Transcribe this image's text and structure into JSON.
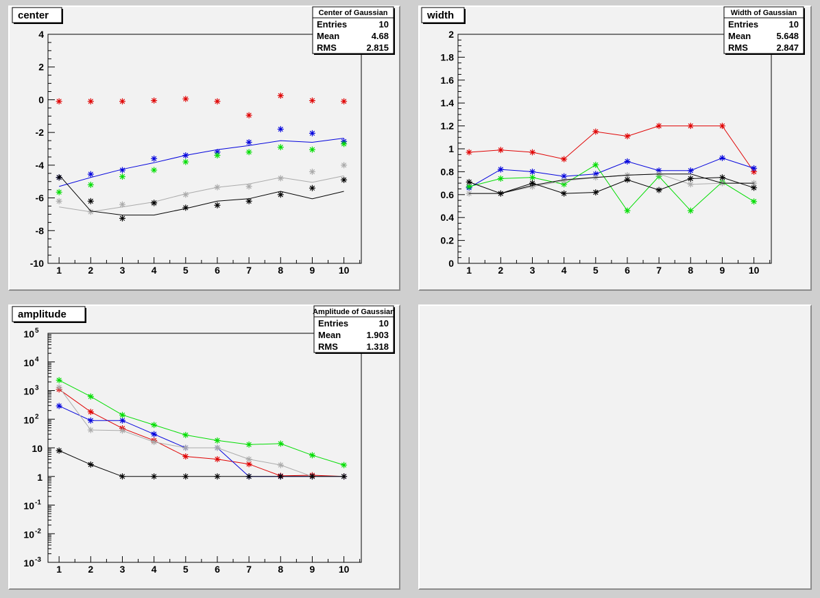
{
  "chart_data": [
    {
      "id": "center",
      "type": "scatter",
      "title": "center",
      "ylim": [
        -10,
        4
      ],
      "xlim": [
        0.65,
        10.55
      ],
      "x_ticks": [
        "1",
        "2",
        "3",
        "4",
        "5",
        "6",
        "7",
        "8",
        "9",
        "10"
      ],
      "y_ticks": [
        "-10",
        "-8",
        "-6",
        "-4",
        "-2",
        "0",
        "2",
        "4"
      ],
      "stats": {
        "title": "Center of Gaussian",
        "rows": [
          [
            "Entries",
            "10"
          ],
          [
            "Mean",
            "4.68"
          ],
          [
            "RMS",
            "2.815"
          ]
        ]
      },
      "series": [
        {
          "color": "#e00000",
          "marker": true,
          "values": [
            -0.1,
            -0.1,
            -0.1,
            -0.05,
            0.05,
            -0.1,
            -0.95,
            0.25,
            -0.05,
            -0.1
          ]
        },
        {
          "color": "#0000dd",
          "marker": true,
          "values": [
            -4.75,
            -4.55,
            -4.3,
            -3.6,
            -3.4,
            -3.2,
            -2.6,
            -1.8,
            -2.05,
            -2.55
          ]
        },
        {
          "color": "#0000dd",
          "line": true,
          "values": [
            -5.3,
            -4.75,
            -4.25,
            -3.85,
            -3.4,
            -3.05,
            -2.8,
            -2.5,
            -2.6,
            -2.35
          ]
        },
        {
          "color": "#00dd00",
          "marker": true,
          "values": [
            -5.65,
            -5.2,
            -4.7,
            -4.3,
            -3.8,
            -3.4,
            -3.2,
            -2.9,
            -3.05,
            -2.7
          ]
        },
        {
          "color": "#aaaaaa",
          "marker": true,
          "values": [
            -6.2,
            -6.85,
            -6.4,
            -6.35,
            -5.8,
            -5.35,
            -5.3,
            -4.8,
            -4.4,
            -4.0
          ]
        },
        {
          "color": "#aaaaaa",
          "line": true,
          "values": [
            -6.55,
            -6.85,
            -6.55,
            -6.25,
            -5.75,
            -5.35,
            -5.15,
            -4.75,
            -5.05,
            -4.65
          ]
        },
        {
          "color": "#000000",
          "marker": true,
          "values": [
            -4.75,
            -6.2,
            -7.25,
            -6.3,
            -6.6,
            -6.45,
            -6.2,
            -5.8,
            -5.4,
            -4.9
          ]
        },
        {
          "color": "#000000",
          "line": true,
          "values": [
            -4.6,
            -6.8,
            -7.05,
            -7.05,
            -6.65,
            -6.2,
            -6.05,
            -5.6,
            -6.05,
            -5.6
          ]
        }
      ]
    },
    {
      "id": "width",
      "type": "scatter",
      "title": "width",
      "ylim": [
        0,
        2
      ],
      "xlim": [
        0.65,
        10.55
      ],
      "x_ticks": [
        "1",
        "2",
        "3",
        "4",
        "5",
        "6",
        "7",
        "8",
        "9",
        "10"
      ],
      "y_ticks": [
        "0",
        "0.2",
        "0.4",
        "0.6",
        "0.8",
        "1",
        "1.2",
        "1.4",
        "1.6",
        "1.8",
        "2"
      ],
      "stats": {
        "title": "Width of Gaussian",
        "rows": [
          [
            "Entries",
            "10"
          ],
          [
            "Mean",
            "5.648"
          ],
          [
            "RMS",
            "2.847"
          ]
        ]
      },
      "series": [
        {
          "color": "#e00000",
          "marker": true,
          "line": true,
          "values": [
            0.97,
            0.99,
            0.97,
            0.91,
            1.15,
            1.11,
            1.2,
            1.2,
            1.2,
            0.8
          ]
        },
        {
          "color": "#0000dd",
          "marker": true,
          "line": true,
          "values": [
            0.66,
            0.82,
            0.8,
            0.76,
            0.78,
            0.89,
            0.81,
            0.81,
            0.92,
            0.83
          ]
        },
        {
          "color": "#00dd00",
          "marker": true,
          "line": true,
          "values": [
            0.67,
            0.74,
            0.75,
            0.69,
            0.86,
            0.46,
            0.76,
            0.46,
            0.71,
            0.54
          ]
        },
        {
          "color": "#aaaaaa",
          "marker": true,
          "line": true,
          "values": [
            0.61,
            0.61,
            0.67,
            0.72,
            0.75,
            0.77,
            0.78,
            0.69,
            0.7,
            0.7
          ]
        },
        {
          "color": "#000000",
          "marker": true,
          "line": true,
          "values": [
            0.71,
            0.61,
            0.7,
            0.61,
            0.62,
            0.73,
            0.64,
            0.74,
            0.75,
            0.66
          ]
        },
        {
          "color": "#000000",
          "line": true,
          "values": [
            0.61,
            0.61,
            0.68,
            0.73,
            0.75,
            0.77,
            0.78,
            0.78,
            0.7,
            0.7
          ]
        }
      ]
    },
    {
      "id": "amplitude",
      "type": "scatter",
      "title": "amplitude",
      "log_y": true,
      "ylim": [
        0.001,
        100000
      ],
      "xlim": [
        0.65,
        10.55
      ],
      "x_ticks": [
        "1",
        "2",
        "3",
        "4",
        "5",
        "6",
        "7",
        "8",
        "9",
        "10"
      ],
      "y_ticks": [
        [
          "10",
          "-3"
        ],
        [
          "10",
          "-2"
        ],
        [
          "10",
          "-1"
        ],
        [
          "1",
          ""
        ],
        [
          "10",
          ""
        ],
        [
          "10",
          "2"
        ],
        [
          "10",
          "3"
        ],
        [
          "10",
          "4"
        ],
        [
          "10",
          "5"
        ]
      ],
      "stats": {
        "title": "Amplitude of Gaussian",
        "rows": [
          [
            "Entries",
            "10"
          ],
          [
            "Mean",
            "1.903"
          ],
          [
            "RMS",
            "1.318"
          ]
        ]
      },
      "series": [
        {
          "color": "#e00000",
          "marker": true,
          "line": true,
          "values": [
            1100,
            180,
            48,
            18,
            5,
            4,
            2.7,
            1.05,
            1.1,
            1
          ]
        },
        {
          "color": "#0000dd",
          "marker": true,
          "line": true,
          "values": [
            290,
            90,
            90,
            30,
            10,
            10,
            1,
            1,
            1,
            1
          ]
        },
        {
          "color": "#00dd00",
          "marker": true,
          "line": true,
          "values": [
            2300,
            620,
            140,
            63,
            28,
            18,
            13,
            14,
            5.5,
            2.5
          ]
        },
        {
          "color": "#aaaaaa",
          "marker": true,
          "line": true,
          "values": [
            1300,
            42,
            40,
            16,
            10,
            10,
            4,
            2.5,
            1,
            1
          ]
        },
        {
          "color": "#000000",
          "marker": true,
          "line": true,
          "values": [
            8,
            2.6,
            1,
            1,
            1,
            1,
            1,
            1,
            1,
            1
          ]
        }
      ]
    }
  ]
}
